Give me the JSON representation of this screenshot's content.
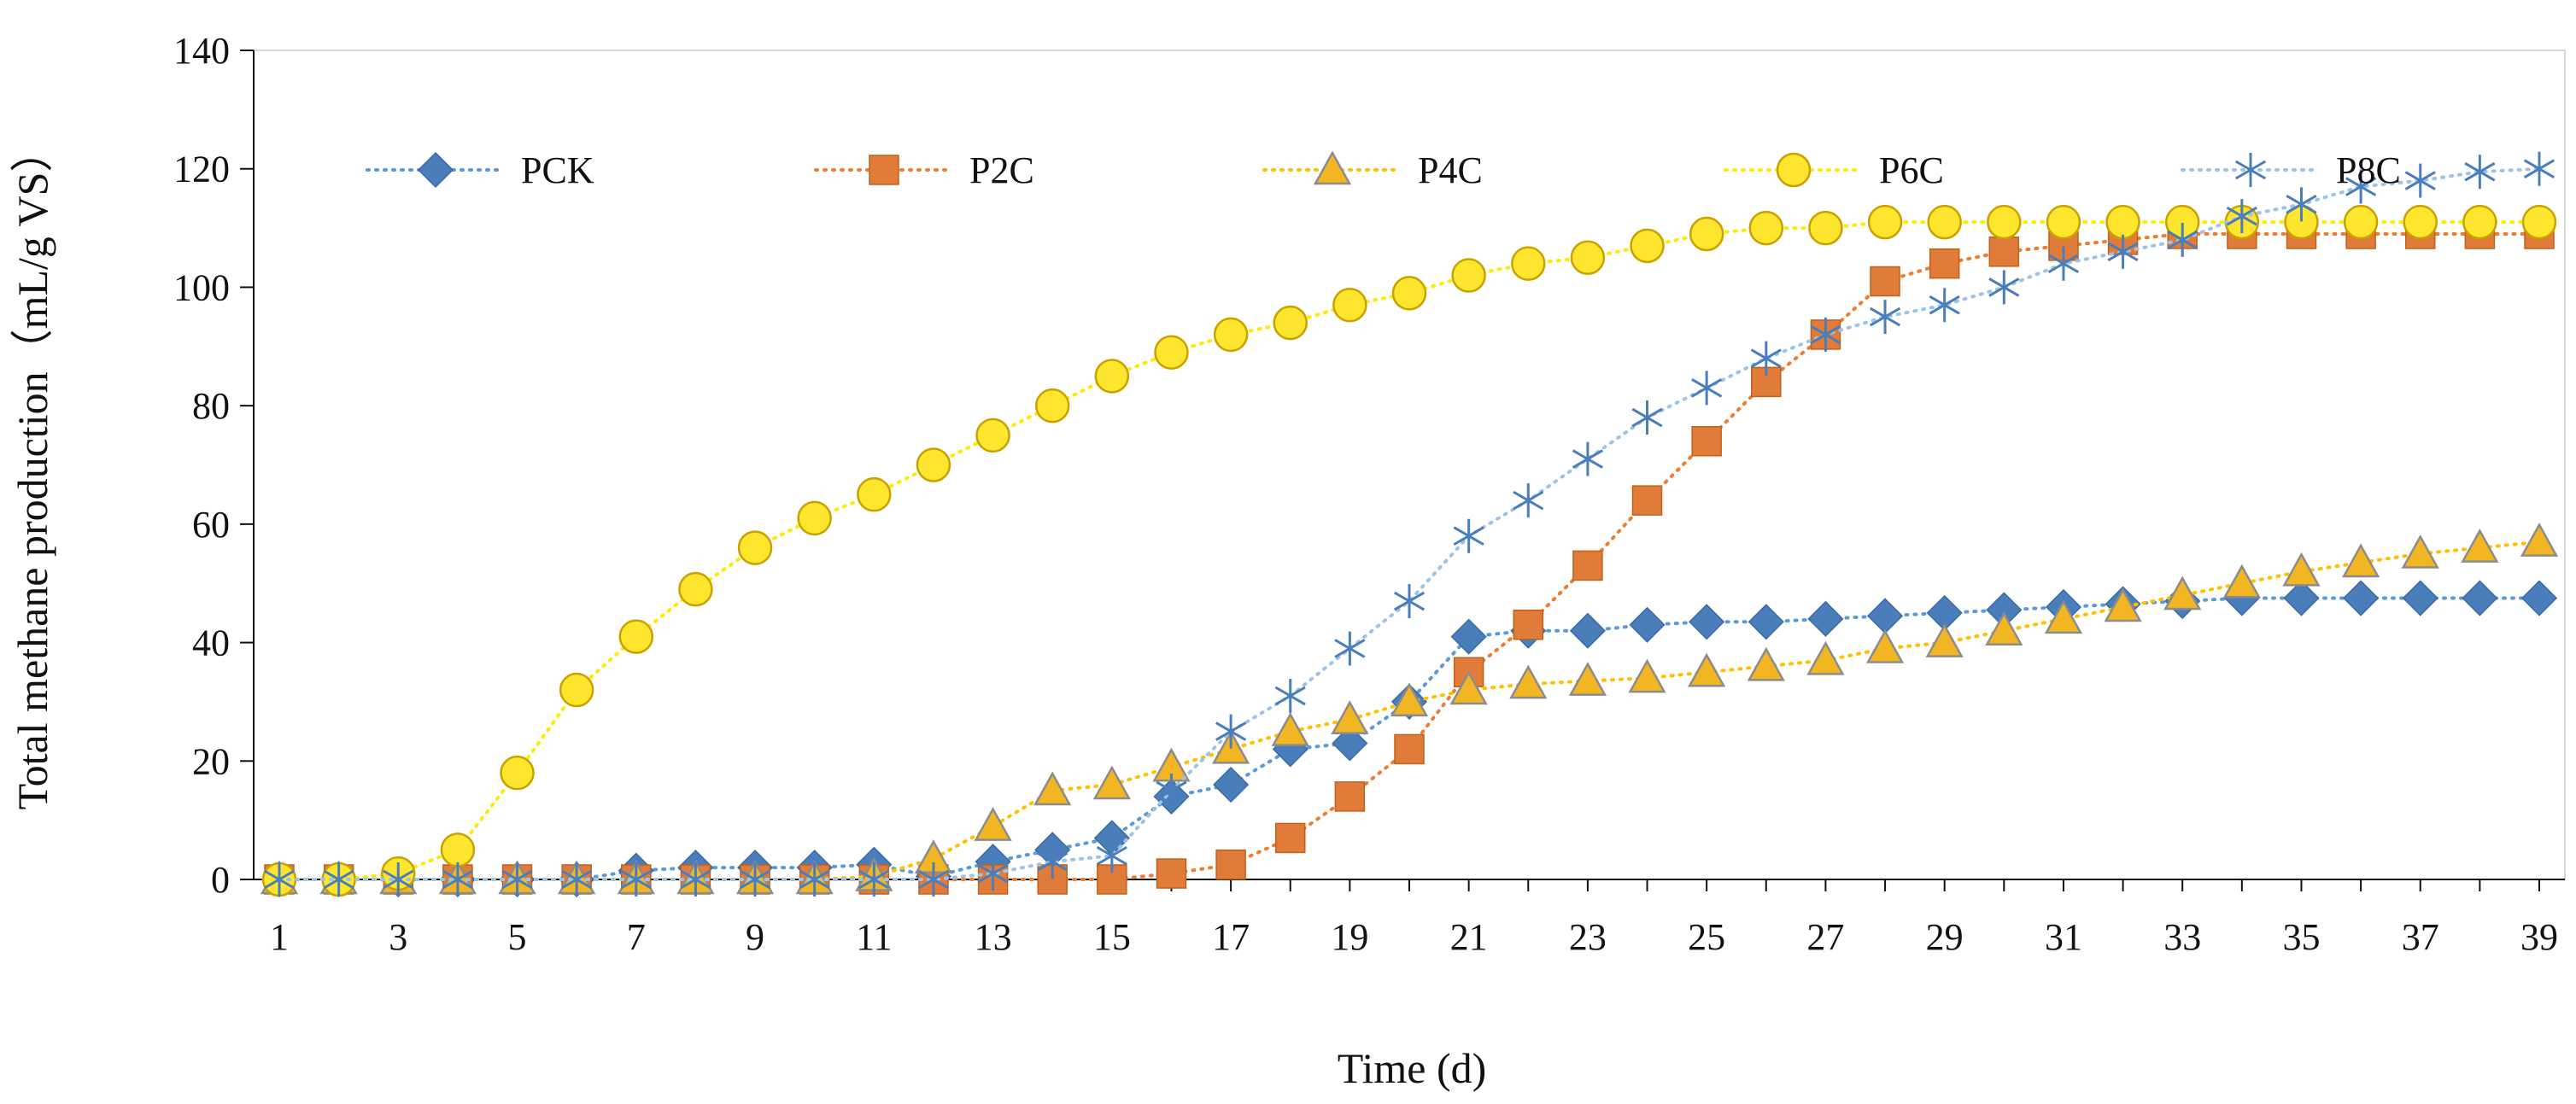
{
  "chart_data": {
    "type": "line",
    "xlabel": "Time (d)",
    "ylabel": "Total methane production（mL/g VS）",
    "xlim": [
      1,
      39
    ],
    "ylim": [
      0,
      140
    ],
    "xticks": [
      1,
      3,
      5,
      7,
      9,
      11,
      13,
      15,
      17,
      19,
      21,
      23,
      25,
      27,
      29,
      31,
      33,
      35,
      37,
      39
    ],
    "yticks": [
      0,
      20,
      40,
      60,
      80,
      100,
      120,
      140
    ],
    "grid": false,
    "legend_position": "top",
    "x": [
      1,
      2,
      3,
      4,
      5,
      6,
      7,
      8,
      9,
      10,
      11,
      12,
      13,
      14,
      15,
      16,
      17,
      18,
      19,
      20,
      21,
      22,
      23,
      24,
      25,
      26,
      27,
      28,
      29,
      30,
      31,
      32,
      33,
      34,
      35,
      36,
      37,
      38,
      39
    ],
    "series": [
      {
        "name": "PCK",
        "marker": "diamond",
        "color": "#4a7ebb",
        "line_color": "#5b9bd5",
        "values": [
          0,
          0,
          0,
          0,
          0,
          0,
          1.5,
          2,
          2,
          2,
          2.5,
          0.5,
          3,
          5,
          7,
          14,
          16,
          22,
          23,
          30,
          41,
          42,
          42,
          43,
          43.5,
          43.5,
          44,
          44.5,
          45,
          45.5,
          46,
          46.5,
          47,
          47.5,
          47.5,
          47.5,
          47.5,
          47.5,
          47.5
        ]
      },
      {
        "name": "P2C",
        "marker": "square",
        "color": "#e07b39",
        "line_color": "#ed7d31",
        "values": [
          0,
          0,
          0,
          0,
          0,
          0,
          0,
          0,
          0,
          0,
          0,
          0,
          0,
          0,
          0,
          1,
          2.5,
          7,
          14,
          22,
          35,
          43,
          53,
          64,
          74,
          84,
          92,
          101,
          104,
          106,
          107,
          108,
          109,
          109,
          109,
          109,
          109,
          109,
          109
        ]
      },
      {
        "name": "P4C",
        "marker": "triangle",
        "color": "#f2b623",
        "line_color": "#ffc000",
        "values": [
          0,
          0,
          0,
          0,
          0,
          0,
          0,
          0,
          0,
          0,
          0.5,
          3.5,
          9,
          15,
          16,
          19,
          22,
          25,
          27,
          30,
          32,
          33,
          33.5,
          34,
          35,
          36,
          37,
          39,
          40,
          42,
          44,
          46,
          48,
          50,
          52,
          53.5,
          55,
          56,
          57
        ]
      },
      {
        "name": "P6C",
        "marker": "circle",
        "color": "#ffe62e",
        "line_color": "#ffeb00",
        "values": [
          0,
          0,
          1,
          5,
          18,
          32,
          41,
          49,
          56,
          61,
          65,
          70,
          75,
          80,
          85,
          89,
          92,
          94,
          97,
          99,
          102,
          104,
          105,
          107,
          109,
          110,
          110,
          111,
          111,
          111,
          111,
          111,
          111,
          111,
          111,
          111,
          111,
          111,
          111
        ]
      },
      {
        "name": "P8C",
        "marker": "star",
        "color": "#4a7ebb",
        "line_color": "#9dc3e6",
        "values": [
          0,
          0,
          0,
          0,
          0,
          0,
          0,
          0,
          0,
          0,
          0,
          0,
          1,
          3,
          4,
          15,
          25,
          31,
          39,
          47,
          58,
          64,
          71,
          78,
          83,
          88,
          92,
          95,
          97,
          100,
          104,
          106,
          108,
          112,
          114,
          117,
          118,
          119.5,
          120
        ]
      }
    ]
  }
}
